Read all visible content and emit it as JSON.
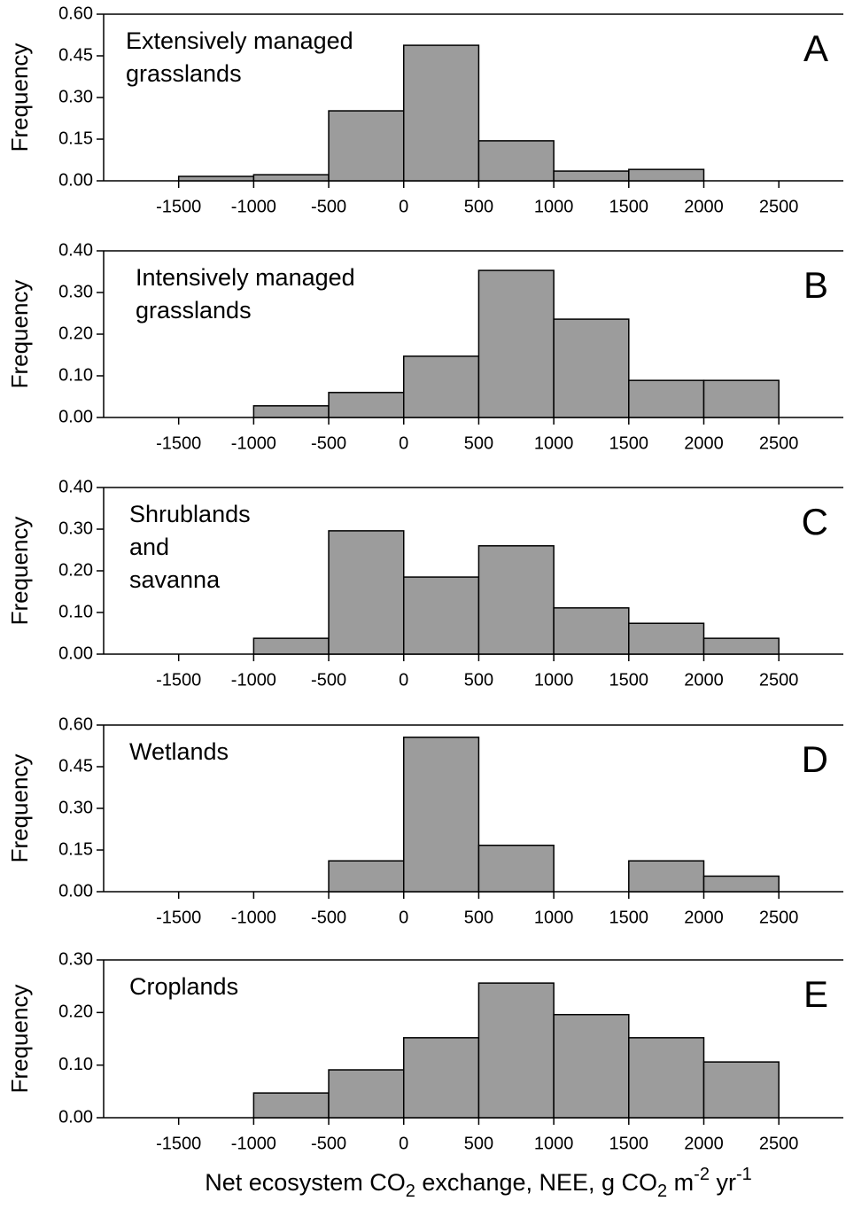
{
  "chart_data": [
    {
      "type": "histogram",
      "annotation": [
        "Extensively managed",
        "grasslands"
      ],
      "panel": "A",
      "ylabel": "Frequency",
      "bins": [
        -1500,
        -1000,
        -500,
        0,
        500,
        1000,
        1500,
        2000
      ],
      "values": [
        0.016,
        0.022,
        0.252,
        0.488,
        0.144,
        0.035,
        0.041
      ],
      "color": "#9c9c9c",
      "xlim": [
        -2000,
        2930
      ],
      "xticks": [
        -1500,
        -1000,
        -500,
        0,
        500,
        1000,
        1500,
        2000,
        2500
      ],
      "ylim": [
        0,
        0.6
      ],
      "yticks": [
        {
          "value": 0,
          "label": "0.00"
        },
        {
          "value": 0.15,
          "label": "0.15"
        },
        {
          "value": 0.3,
          "label": "0.30"
        },
        {
          "value": 0.45,
          "label": "0.45"
        },
        {
          "value": 0.6,
          "label": "0.60"
        }
      ]
    },
    {
      "type": "histogram",
      "annotation": [
        "Intensively managed",
        "grasslands"
      ],
      "panel": "B",
      "ylabel": "Frequency",
      "bins": [
        -1000,
        -500,
        0,
        500,
        1000,
        1500,
        2000,
        2500
      ],
      "values": [
        0.028,
        0.06,
        0.147,
        0.353,
        0.236,
        0.089,
        0.089
      ],
      "color": "#9c9c9c",
      "xlim": [
        -2000,
        2930
      ],
      "xticks": [
        -1500,
        -1000,
        -500,
        0,
        500,
        1000,
        1500,
        2000,
        2500
      ],
      "ylim": [
        0,
        0.4
      ],
      "yticks": [
        {
          "value": 0,
          "label": "0.00"
        },
        {
          "value": 0.1,
          "label": "0.10"
        },
        {
          "value": 0.2,
          "label": "0.20"
        },
        {
          "value": 0.3,
          "label": "0.30"
        },
        {
          "value": 0.4,
          "label": "0.40"
        }
      ]
    },
    {
      "type": "histogram",
      "annotation": [
        "Shrublands",
        "and",
        "savanna"
      ],
      "panel": "C",
      "ylabel": "Frequency",
      "bins": [
        -1000,
        -500,
        0,
        500,
        1000,
        1500,
        2000,
        2500
      ],
      "values": [
        0.038,
        0.296,
        0.185,
        0.26,
        0.111,
        0.074,
        0.038
      ],
      "color": "#9c9c9c",
      "xlim": [
        -2000,
        2930
      ],
      "xticks": [
        -1500,
        -1000,
        -500,
        0,
        500,
        1000,
        1500,
        2000,
        2500
      ],
      "ylim": [
        0,
        0.4
      ],
      "yticks": [
        {
          "value": 0,
          "label": "0.00"
        },
        {
          "value": 0.1,
          "label": "0.10"
        },
        {
          "value": 0.2,
          "label": "0.20"
        },
        {
          "value": 0.3,
          "label": "0.30"
        },
        {
          "value": 0.4,
          "label": "0.40"
        }
      ]
    },
    {
      "type": "histogram",
      "annotation": [
        "Wetlands"
      ],
      "panel": "D",
      "ylabel": "Frequency",
      "bins": [
        -500,
        0,
        500,
        1000,
        1500,
        2000,
        2500
      ],
      "values": [
        0.111,
        0.556,
        0.167,
        0,
        0.111,
        0.056
      ],
      "color": "#9c9c9c",
      "xlim": [
        -2000,
        2930
      ],
      "xticks": [
        -1500,
        -1000,
        -500,
        0,
        500,
        1000,
        1500,
        2000,
        2500
      ],
      "ylim": [
        0,
        0.6
      ],
      "yticks": [
        {
          "value": 0,
          "label": "0.00"
        },
        {
          "value": 0.15,
          "label": "0.15"
        },
        {
          "value": 0.3,
          "label": "0.30"
        },
        {
          "value": 0.45,
          "label": "0.45"
        },
        {
          "value": 0.6,
          "label": "0.60"
        }
      ]
    },
    {
      "type": "histogram",
      "annotation": [
        "Croplands"
      ],
      "panel": "E",
      "ylabel": "Frequency",
      "bins": [
        -1000,
        -500,
        0,
        500,
        1000,
        1500,
        2000,
        2500
      ],
      "values": [
        0.047,
        0.091,
        0.152,
        0.256,
        0.196,
        0.152,
        0.106
      ],
      "color": "#9c9c9c",
      "xlim": [
        -2000,
        2930
      ],
      "xticks": [
        -1500,
        -1000,
        -500,
        0,
        500,
        1000,
        1500,
        2000,
        2500
      ],
      "ylim": [
        0,
        0.3
      ],
      "yticks": [
        {
          "value": 0,
          "label": "0.00"
        },
        {
          "value": 0.1,
          "label": "0.10"
        },
        {
          "value": 0.2,
          "label": "0.20"
        },
        {
          "value": 0.3,
          "label": "0.30"
        }
      ],
      "xlabel": [
        {
          "text": "Net ecosystem CO"
        },
        {
          "text": "2",
          "shift": "sub"
        },
        {
          "text": " exchange, NEE, g CO"
        },
        {
          "text": "2",
          "shift": "sub"
        },
        {
          "text": " m"
        },
        {
          "text": "-2",
          "shift": "super"
        },
        {
          "text": " yr"
        },
        {
          "text": "-1",
          "shift": "super"
        }
      ]
    }
  ]
}
